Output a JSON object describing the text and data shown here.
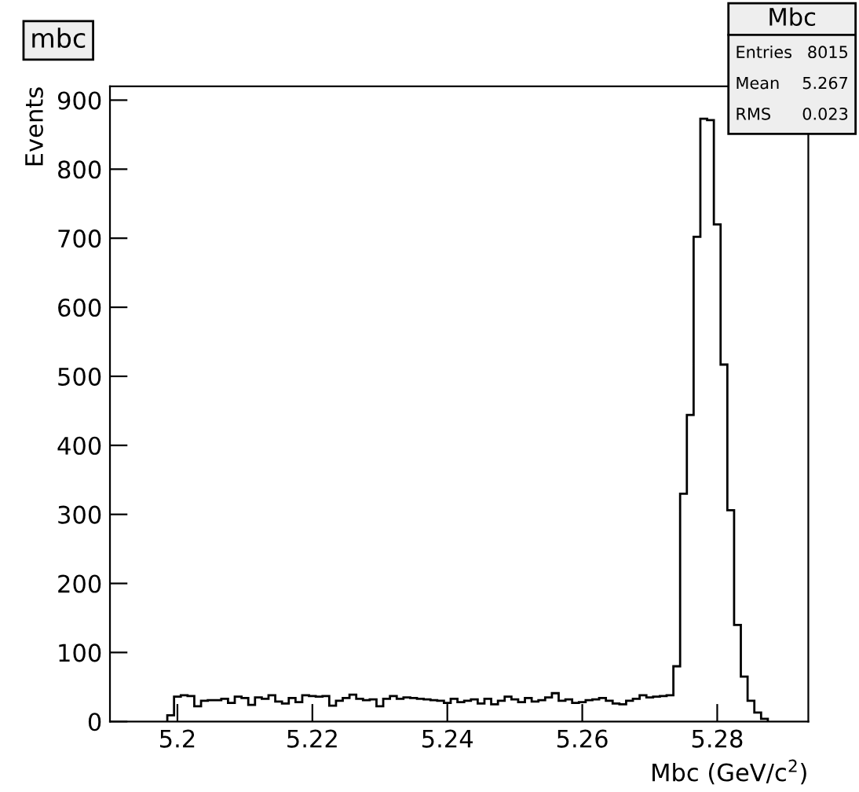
{
  "chart_data": {
    "type": "histogram",
    "title": "mbc",
    "xlabel": "Mbc (GeV/c$^{2}$)",
    "ylabel": "Events",
    "bins": [
      5.1985,
      5.1995,
      5.2005,
      5.2015,
      5.2025,
      5.2035,
      5.2045,
      5.2055,
      5.2065,
      5.2075,
      5.2085,
      5.2095,
      5.2105,
      5.2115,
      5.2125,
      5.2135,
      5.2145,
      5.2155,
      5.2165,
      5.2175,
      5.2185,
      5.2195,
      5.2205,
      5.2215,
      5.2225,
      5.2235,
      5.2245,
      5.2255,
      5.2265,
      5.2275,
      5.2285,
      5.2295,
      5.2305,
      5.2315,
      5.2325,
      5.2335,
      5.2345,
      5.2355,
      5.2365,
      5.2375,
      5.2385,
      5.2395,
      5.2405,
      5.2415,
      5.2425,
      5.2435,
      5.2445,
      5.2455,
      5.2465,
      5.2475,
      5.2485,
      5.2495,
      5.2505,
      5.2515,
      5.2525,
      5.2535,
      5.2545,
      5.2555,
      5.2565,
      5.2575,
      5.2585,
      5.2595,
      5.2605,
      5.2615,
      5.2625,
      5.2635,
      5.2645,
      5.2655,
      5.2665,
      5.2675,
      5.2685,
      5.2695,
      5.2705,
      5.2715,
      5.2725,
      5.2735,
      5.2745,
      5.2755,
      5.2765,
      5.2775,
      5.2785,
      5.2795,
      5.2805,
      5.2815,
      5.2825,
      5.2835,
      5.2845,
      5.2855,
      5.2865,
      5.2875
    ],
    "values": [
      9,
      36,
      38,
      37,
      22,
      30,
      31,
      31,
      33,
      27,
      36,
      34,
      24,
      35,
      33,
      38,
      29,
      26,
      34,
      28,
      38,
      37,
      36,
      37,
      23,
      30,
      34,
      39,
      33,
      31,
      32,
      22,
      33,
      37,
      33,
      35,
      34,
      33,
      32,
      31,
      30,
      27,
      33,
      28,
      30,
      32,
      26,
      33,
      25,
      30,
      36,
      32,
      28,
      34,
      29,
      31,
      35,
      41,
      30,
      32,
      27,
      28,
      31,
      32,
      34,
      30,
      26,
      25,
      30,
      33,
      38,
      35,
      36,
      37,
      38,
      80,
      330,
      444,
      702,
      873,
      871,
      720,
      517,
      306,
      140,
      65,
      30,
      13,
      4
    ],
    "color": "#000000",
    "xlim": [
      5.19,
      5.2935
    ],
    "xticks": [
      5.2,
      5.22,
      5.24,
      5.26,
      5.28
    ],
    "ylim": [
      0,
      920
    ],
    "yticks": [
      0,
      100,
      200,
      300,
      400,
      500,
      600,
      700,
      800,
      900
    ],
    "annotations": [
      "Mbc",
      "Entries 8015",
      "Mean 5.267",
      "RMS 0.023"
    ],
    "grid": false,
    "legend": false
  }
}
